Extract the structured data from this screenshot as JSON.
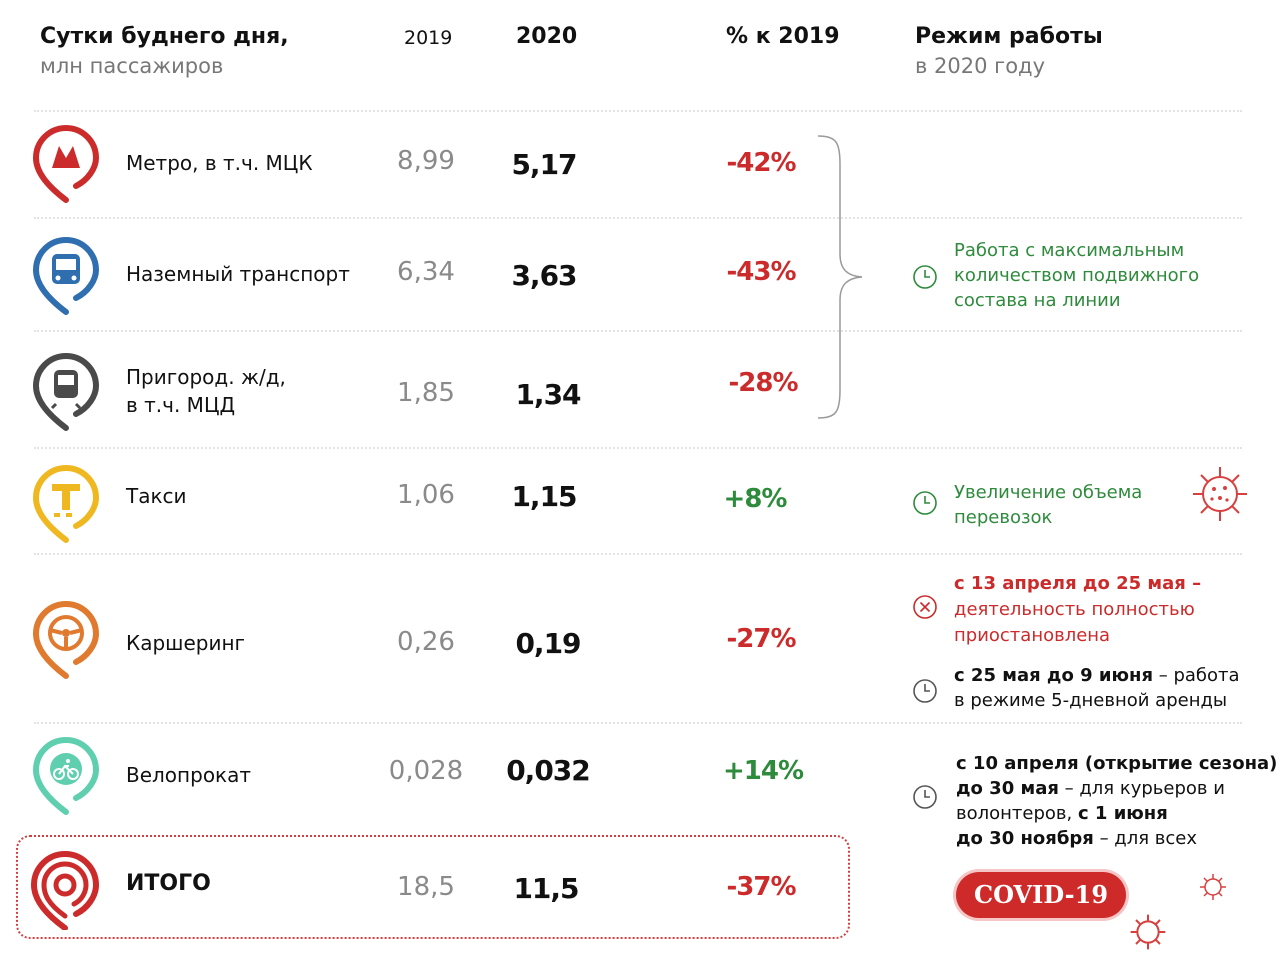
{
  "header": {
    "title": "Сутки буднего дня,",
    "subtitle": "млн пассажиров",
    "col_2019": "2019",
    "col_2020": "2020",
    "col_pct": "% к 2019",
    "col_mode": "Режим работы",
    "col_mode_sub": "в 2020 году"
  },
  "rows": [
    {
      "label": "Метро, в т.ч.  МЦК",
      "icon": "metro-icon",
      "v2019": "8,99",
      "v2020": "5,17",
      "pct": "-42%"
    },
    {
      "label": "Наземный транспорт",
      "icon": "bus-icon",
      "v2019": "6,34",
      "v2020": "3,63",
      "pct": "-43%"
    },
    {
      "label_line1": "Пригород. ж/д,",
      "label_line2": "в т.ч. МЦД",
      "icon": "train-icon",
      "v2019": "1,85",
      "v2020": "1,34",
      "pct": "-28%"
    },
    {
      "label": "Такси",
      "icon": "taxi-icon",
      "v2019": "1,06",
      "v2020": "1,15",
      "pct": "+8%"
    },
    {
      "label": "Каршеринг",
      "icon": "steering-wheel-icon",
      "v2019": "0,26",
      "v2020": "0,19",
      "pct": "-27%"
    },
    {
      "label": "Велопрокат",
      "icon": "bicycle-icon",
      "v2019": "0,028",
      "v2020": "0,032",
      "pct": "+14%"
    },
    {
      "label": "ИТОГО",
      "icon": "moscow-transport-logo",
      "v2019": "18,5",
      "v2020": "11,5",
      "pct": "-37%"
    }
  ],
  "notes": {
    "rail_group": [
      "Работа с максимальным",
      "количеством подвижного",
      "состава на линии"
    ],
    "taxi": [
      "Увеличение объема",
      "перевозок"
    ],
    "carsharing_suspended": [
      "с 13 апреля до 25 мая –",
      "деятельность полностью",
      "приостановлена"
    ],
    "carsharing_resume_bold": "с 25 мая до 9 июня",
    "carsharing_resume_rest": " – работа",
    "carsharing_resume_line2": "в режиме 5-дневной аренды",
    "bike_line1": "с 10 апреля (открытие сезона)",
    "bike_line2_bold": "до 30 мая",
    "bike_line2_rest": " – для курьеров и",
    "bike_line3_rest": "волонтеров, ",
    "bike_line3_bold": "с 1 июня",
    "bike_line4_bold": "до 30 ноября",
    "bike_line4_rest": " – для всех"
  },
  "badge": "COVID-19",
  "colors": {
    "metro": "#cc2b2b",
    "bus": "#2f6fb0",
    "train": "#4a4a4a",
    "taxi": "#f0b820",
    "carsharing": "#e07a2e",
    "bike": "#5fcfb0",
    "total": "#cc2b2b",
    "negative": "#cc2b2b",
    "positive": "#2e8b3c"
  }
}
